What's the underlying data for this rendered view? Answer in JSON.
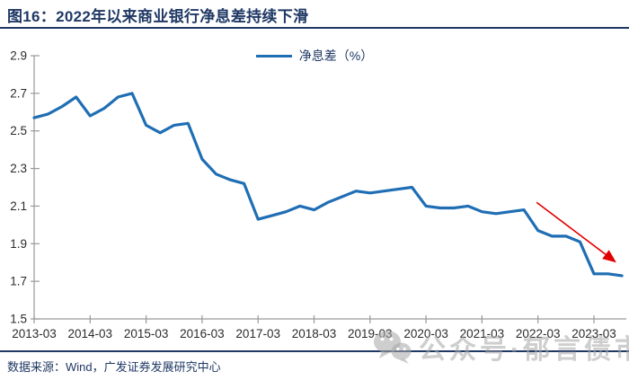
{
  "chart_data": {
    "type": "line",
    "title": "图16：2022年以来商业银行净息差持续下滑",
    "x": [
      "2013-03",
      "2013-06",
      "2013-09",
      "2013-12",
      "2014-03",
      "2014-06",
      "2014-09",
      "2014-12",
      "2015-03",
      "2015-06",
      "2015-09",
      "2015-12",
      "2016-03",
      "2016-06",
      "2016-09",
      "2016-12",
      "2017-03",
      "2017-06",
      "2017-09",
      "2017-12",
      "2018-03",
      "2018-06",
      "2018-09",
      "2018-12",
      "2019-03",
      "2019-06",
      "2019-09",
      "2019-12",
      "2020-03",
      "2020-06",
      "2020-09",
      "2020-12",
      "2021-03",
      "2021-06",
      "2021-09",
      "2021-12",
      "2022-03",
      "2022-06",
      "2022-09",
      "2022-12",
      "2023-03",
      "2023-06",
      "2023-09"
    ],
    "series": [
      {
        "name": "净息差（%）",
        "color": "#1f6eb4",
        "values": [
          2.57,
          2.59,
          2.63,
          2.68,
          2.58,
          2.62,
          2.68,
          2.7,
          2.53,
          2.49,
          2.53,
          2.54,
          2.35,
          2.27,
          2.24,
          2.22,
          2.03,
          2.05,
          2.07,
          2.1,
          2.08,
          2.12,
          2.15,
          2.18,
          2.17,
          2.18,
          2.19,
          2.2,
          2.1,
          2.09,
          2.09,
          2.1,
          2.07,
          2.06,
          2.07,
          2.08,
          1.97,
          1.94,
          1.94,
          1.91,
          1.74,
          1.74,
          1.73
        ]
      }
    ],
    "ylim": [
      1.5,
      2.9
    ],
    "yticks": [
      2.9,
      2.7,
      2.5,
      2.3,
      2.1,
      1.9,
      1.7,
      1.5
    ],
    "xtick_every": 4,
    "xtick_labels": [
      "2013-03",
      "2014-03",
      "2015-03",
      "2016-03",
      "2017-03",
      "2018-03",
      "2019-03",
      "2020-03",
      "2021-03",
      "2022-03",
      "2023-03"
    ],
    "grid": false,
    "legend_position": "top-center",
    "axis_color": "#999999",
    "tick_label_color": "#2b2b2b",
    "annotation": {
      "type": "arrow",
      "color": "#e00000",
      "from": {
        "x_index": 35.9,
        "value": 2.12
      },
      "to": {
        "x_index": 41.6,
        "value": 1.8
      }
    }
  },
  "footer": {
    "source_label": "数据来源：Wind，广发证券发展研究中心"
  },
  "watermark": {
    "icon": "wechat-icon",
    "text": "公众号·郁言债市"
  },
  "theme": {
    "title_color": "#1f3864",
    "rule_color": "#1f3864",
    "line_color": "#1f6eb4",
    "arrow_color": "#e00000",
    "watermark_color": "#a5a5a5"
  }
}
